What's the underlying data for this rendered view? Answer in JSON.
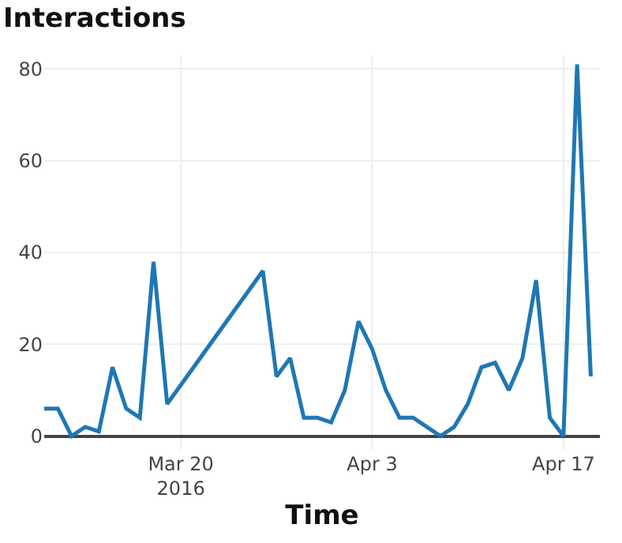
{
  "chart_data": {
    "type": "line",
    "title": "Interactions",
    "xlabel": "Time",
    "x": [
      "2016-03-10",
      "2016-03-11",
      "2016-03-12",
      "2016-03-13",
      "2016-03-14",
      "2016-03-15",
      "2016-03-16",
      "2016-03-17",
      "2016-03-18",
      "2016-03-19",
      "2016-03-26",
      "2016-03-27",
      "2016-03-28",
      "2016-03-29",
      "2016-03-30",
      "2016-03-31",
      "2016-04-01",
      "2016-04-02",
      "2016-04-03",
      "2016-04-04",
      "2016-04-05",
      "2016-04-06",
      "2016-04-07",
      "2016-04-08",
      "2016-04-09",
      "2016-04-10",
      "2016-04-11",
      "2016-04-12",
      "2016-04-13",
      "2016-04-14",
      "2016-04-15",
      "2016-04-16",
      "2016-04-17",
      "2016-04-18",
      "2016-04-19"
    ],
    "series": [
      {
        "color": "#1f77b4",
        "values": [
          6,
          6,
          0,
          2,
          1,
          15,
          6,
          4,
          38,
          7,
          36,
          13,
          17,
          4,
          4,
          3,
          10,
          25,
          19,
          10,
          4,
          4,
          2,
          0,
          2,
          7,
          15,
          16,
          10,
          17,
          34,
          4,
          0,
          81,
          13
        ]
      }
    ],
    "xlim": [
      "2016-03-10",
      "2016-04-19T16:00"
    ],
    "ylim": [
      -3,
      83
    ],
    "xticks": [
      {
        "value": "2016-03-20",
        "label": "Mar 20\n2016"
      },
      {
        "value": "2016-04-03",
        "label": "Apr 3"
      },
      {
        "value": "2016-04-17",
        "label": "Apr 17"
      }
    ],
    "yticks": [
      0,
      20,
      40,
      60,
      80
    ],
    "grid": true,
    "legend": false
  }
}
